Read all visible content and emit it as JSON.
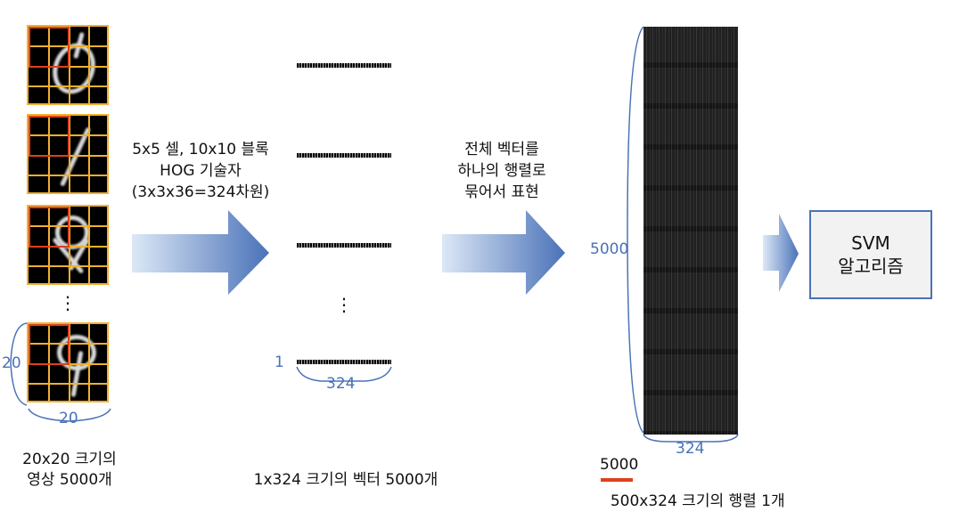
{
  "images": {
    "caption_line1": "20x20 크기의",
    "caption_line2": "영상 5000개",
    "ellipsis": "⋮",
    "dim_left": "20",
    "dim_bottom": "20"
  },
  "step1": {
    "line1": "5x5 셀, 10x10 블록",
    "line2": "HOG 기술자",
    "line3": "(3x3x36=324차원)"
  },
  "vectors": {
    "ellipsis": "⋮",
    "index_label": "1",
    "length_label": "324",
    "caption": "1x324 크기의 벡터 5000개"
  },
  "step2": {
    "line1": "전체 벡터를",
    "line2": "하나의 행렬로",
    "line3": "묶어서 표현"
  },
  "matrix": {
    "rows_label": "5000",
    "cols_label": "324",
    "correction": "5000",
    "caption_struck": "500",
    "caption_rest": "x324 크기의 행렬 1개"
  },
  "svm": {
    "line1": "SVM",
    "line2": "알고리즘"
  },
  "colors": {
    "accent_blue": "#4a72b8",
    "grid_orange": "#f0b030",
    "block_red": "#e0401a",
    "strike_red": "#e0401a"
  }
}
